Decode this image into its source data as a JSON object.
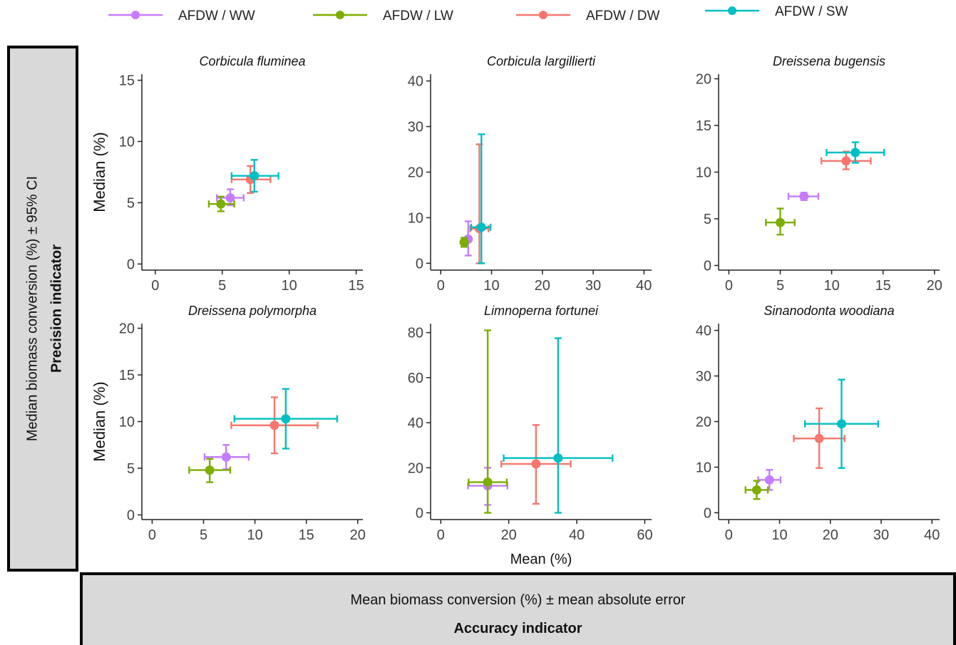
{
  "legend": [
    {
      "label": "AFDW / WW",
      "color": "#c77cff"
    },
    {
      "label": "AFDW / LW",
      "color": "#7cae00"
    },
    {
      "label": "AFDW / DW",
      "color": "#f8766d"
    },
    {
      "label": "AFDW / SW",
      "color": "#00bfc4"
    }
  ],
  "left_strip": {
    "title": "Median biomass conversion (%) ± 95% CI",
    "indicator": "Precision indicator"
  },
  "bottom_strip": {
    "title": "Mean biomass conversion (%) ± mean absolute error",
    "indicator": "Accuracy indicator"
  },
  "chart_data": [
    {
      "type": "scatter",
      "title": "Corbicula fluminea",
      "ylabel": "Median (%)",
      "xlabel": "",
      "xlim": [
        -1,
        15.5
      ],
      "ylim": [
        -0.5,
        15.5
      ],
      "xticks": [
        0,
        5,
        10,
        15
      ],
      "yticks": [
        0,
        5,
        10,
        15
      ],
      "series": [
        {
          "name": "AFDW / WW",
          "x": 5.6,
          "y": 5.4,
          "xerr": [
            4.6,
            6.6
          ],
          "yerr": [
            4.8,
            6.1
          ]
        },
        {
          "name": "AFDW / LW",
          "x": 4.9,
          "y": 4.9,
          "xerr": [
            4.0,
            5.9
          ],
          "yerr": [
            4.3,
            5.5
          ]
        },
        {
          "name": "AFDW / DW",
          "x": 7.1,
          "y": 6.9,
          "xerr": [
            5.7,
            8.6
          ],
          "yerr": [
            5.8,
            8.0
          ]
        },
        {
          "name": "AFDW / SW",
          "x": 7.4,
          "y": 7.2,
          "xerr": [
            5.7,
            9.2
          ],
          "yerr": [
            5.9,
            8.5
          ]
        }
      ]
    },
    {
      "type": "scatter",
      "title": "Corbicula largillierti",
      "ylabel": "",
      "xlabel": "",
      "xlim": [
        -2,
        41.5
      ],
      "ylim": [
        -1.5,
        41.5
      ],
      "xticks": [
        0,
        10,
        20,
        30,
        40
      ],
      "yticks": [
        0,
        10,
        20,
        30,
        40
      ],
      "series": [
        {
          "name": "AFDW / WW",
          "x": 5.4,
          "y": 5.3,
          "xerr": [
            5.0,
            5.8
          ],
          "yerr": [
            1.7,
            9.2
          ]
        },
        {
          "name": "AFDW / LW",
          "x": 4.6,
          "y": 4.6,
          "xerr": [
            4.2,
            5.0
          ],
          "yerr": [
            3.6,
            5.6
          ]
        },
        {
          "name": "AFDW / DW",
          "x": 7.6,
          "y": 7.6,
          "xerr": [
            5.8,
            9.4
          ],
          "yerr": [
            0,
            26.1
          ]
        },
        {
          "name": "AFDW / SW",
          "x": 8.0,
          "y": 7.9,
          "xerr": [
            6.0,
            9.8
          ],
          "yerr": [
            0,
            28.3
          ]
        }
      ]
    },
    {
      "type": "scatter",
      "title": "Dreissena bugensis",
      "ylabel": "",
      "xlabel": "",
      "xlim": [
        -1,
        20.5
      ],
      "ylim": [
        -0.5,
        20.5
      ],
      "xticks": [
        0,
        5,
        10,
        15,
        20
      ],
      "yticks": [
        0,
        5,
        10,
        15,
        20
      ],
      "series": [
        {
          "name": "AFDW / WW",
          "x": 7.3,
          "y": 7.4,
          "xerr": [
            5.8,
            8.7
          ],
          "yerr": [
            7.0,
            7.8
          ]
        },
        {
          "name": "AFDW / LW",
          "x": 5.0,
          "y": 4.6,
          "xerr": [
            3.6,
            6.4
          ],
          "yerr": [
            3.3,
            6.1
          ]
        },
        {
          "name": "AFDW / DW",
          "x": 11.4,
          "y": 11.2,
          "xerr": [
            9.0,
            13.8
          ],
          "yerr": [
            10.3,
            12.2
          ]
        },
        {
          "name": "AFDW / SW",
          "x": 12.3,
          "y": 12.1,
          "xerr": [
            9.5,
            15.1
          ],
          "yerr": [
            11.0,
            13.2
          ]
        }
      ]
    },
    {
      "type": "scatter",
      "title": "Dreissena polymorpha",
      "ylabel": "Median (%)",
      "xlabel": "",
      "xlim": [
        -1,
        20.5
      ],
      "ylim": [
        -0.5,
        20.5
      ],
      "xticks": [
        0,
        5,
        10,
        15,
        20
      ],
      "yticks": [
        0,
        5,
        10,
        15,
        20
      ],
      "series": [
        {
          "name": "AFDW / WW",
          "x": 7.2,
          "y": 6.2,
          "xerr": [
            5.1,
            9.4
          ],
          "yerr": [
            4.9,
            7.5
          ]
        },
        {
          "name": "AFDW / LW",
          "x": 5.6,
          "y": 4.8,
          "xerr": [
            3.6,
            7.6
          ],
          "yerr": [
            3.5,
            6.0
          ]
        },
        {
          "name": "AFDW / DW",
          "x": 11.9,
          "y": 9.6,
          "xerr": [
            7.7,
            16.1
          ],
          "yerr": [
            6.6,
            12.6
          ]
        },
        {
          "name": "AFDW / SW",
          "x": 13.0,
          "y": 10.3,
          "xerr": [
            8.0,
            18.0
          ],
          "yerr": [
            7.1,
            13.5
          ]
        }
      ]
    },
    {
      "type": "scatter",
      "title": "Limnoperna fortunei",
      "ylabel": "",
      "xlabel": "Mean (%)",
      "xlim": [
        -3,
        62
      ],
      "ylim": [
        -3,
        84
      ],
      "xticks": [
        0,
        20,
        40,
        60
      ],
      "yticks": [
        0,
        20,
        40,
        60,
        80
      ],
      "series": [
        {
          "name": "AFDW / WW",
          "x": 13.8,
          "y": 12.0,
          "xerr": [
            8.0,
            19.6
          ],
          "yerr": [
            3.5,
            20.0
          ]
        },
        {
          "name": "AFDW / LW",
          "x": 13.8,
          "y": 13.6,
          "xerr": [
            8.2,
            19.4
          ],
          "yerr": [
            0,
            81.0
          ]
        },
        {
          "name": "AFDW / DW",
          "x": 28.0,
          "y": 21.7,
          "xerr": [
            17.8,
            38.2
          ],
          "yerr": [
            4.0,
            39.0
          ]
        },
        {
          "name": "AFDW / SW",
          "x": 34.5,
          "y": 24.3,
          "xerr": [
            18.5,
            50.5
          ],
          "yerr": [
            0,
            77.5
          ]
        }
      ]
    },
    {
      "type": "scatter",
      "title": "Sinanodonta woodiana",
      "ylabel": "",
      "xlabel": "",
      "xlim": [
        -2,
        41.5
      ],
      "ylim": [
        -1.5,
        41.5
      ],
      "xticks": [
        0,
        10,
        20,
        30,
        40
      ],
      "yticks": [
        0,
        10,
        20,
        30,
        40
      ],
      "series": [
        {
          "name": "AFDW / WW",
          "x": 8.0,
          "y": 7.2,
          "xerr": [
            5.8,
            10.2
          ],
          "yerr": [
            5.0,
            9.4
          ]
        },
        {
          "name": "AFDW / LW",
          "x": 5.5,
          "y": 5.0,
          "xerr": [
            3.3,
            7.7
          ],
          "yerr": [
            3.0,
            7.0
          ]
        },
        {
          "name": "AFDW / DW",
          "x": 17.8,
          "y": 16.3,
          "xerr": [
            12.8,
            22.8
          ],
          "yerr": [
            9.8,
            22.9
          ]
        },
        {
          "name": "AFDW / SW",
          "x": 22.2,
          "y": 19.5,
          "xerr": [
            15.0,
            29.4
          ],
          "yerr": [
            9.8,
            29.2
          ]
        }
      ]
    }
  ]
}
